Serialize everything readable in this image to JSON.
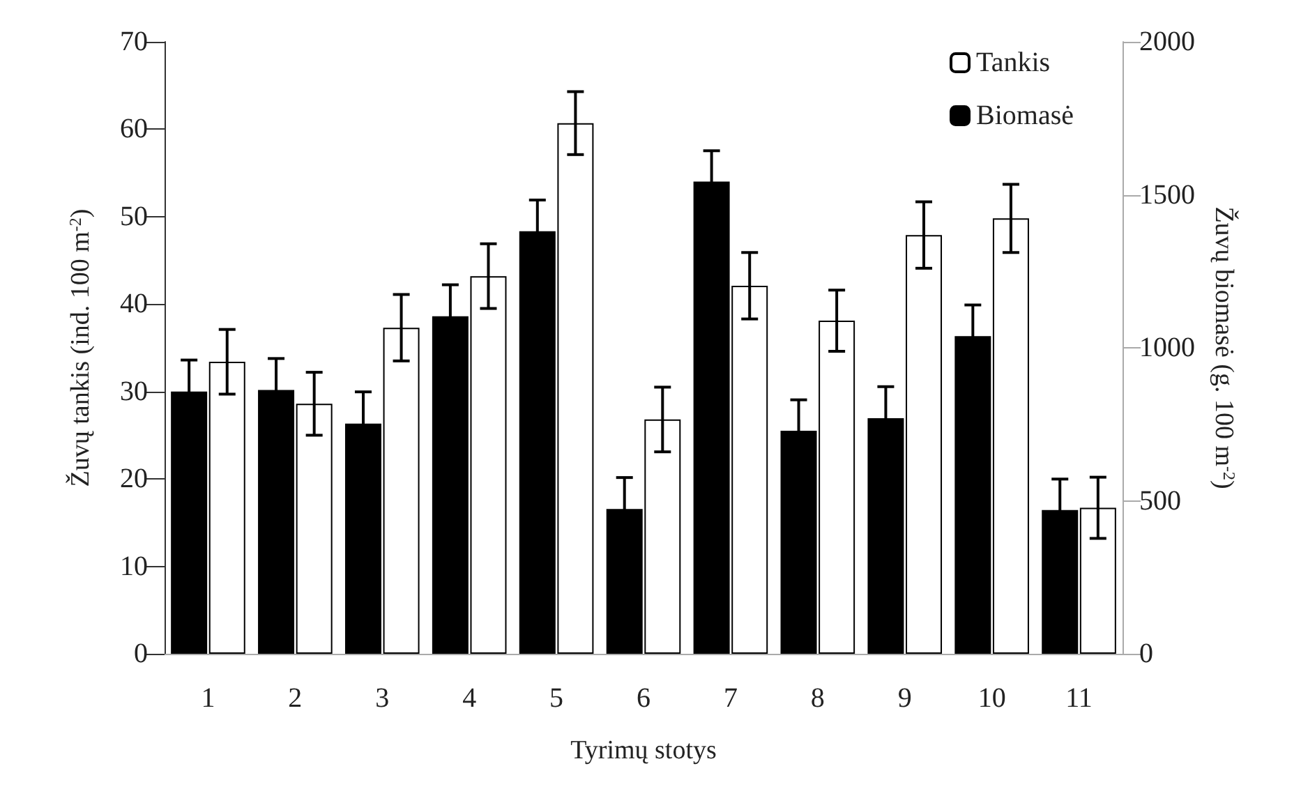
{
  "chart_data": {
    "type": "bar",
    "xlabel": "Tyrimų stotys",
    "ylabel": "Žuvų tankis (ind. 100 m$^{-2}$)",
    "y2label": "Žuvų biomasė (g. 100 m$^{-2}$)",
    "categories": [
      "1",
      "2",
      "3",
      "4",
      "5",
      "6",
      "7",
      "8",
      "9",
      "10",
      "11"
    ],
    "series": [
      {
        "name": "Biomasė",
        "color": "#000000",
        "axis": "y2",
        "values": [
          857,
          862,
          752,
          1103,
          1381,
          473,
          1543,
          729,
          770,
          1038,
          470
        ],
        "errors": [
          103,
          103,
          104,
          103,
          102,
          103,
          101,
          101,
          103,
          102,
          101
        ]
      },
      {
        "name": "Tankis",
        "color": "#ffffff",
        "values": [
          33.4,
          28.6,
          37.3,
          43.2,
          60.7,
          26.8,
          42.1,
          38.1,
          47.9,
          49.8,
          16.7
        ],
        "errors": [
          3.7,
          3.6,
          3.8,
          3.7,
          3.6,
          3.7,
          3.8,
          3.5,
          3.8,
          3.9,
          3.5
        ]
      }
    ],
    "ylim": [
      0,
      70
    ],
    "yticks": [
      0,
      10,
      20,
      30,
      40,
      50,
      60,
      70
    ],
    "y2lim": [
      0,
      2000
    ],
    "y2ticks": [
      0,
      500,
      1000,
      1500,
      2000
    ],
    "grid": false,
    "legend": "top right"
  }
}
